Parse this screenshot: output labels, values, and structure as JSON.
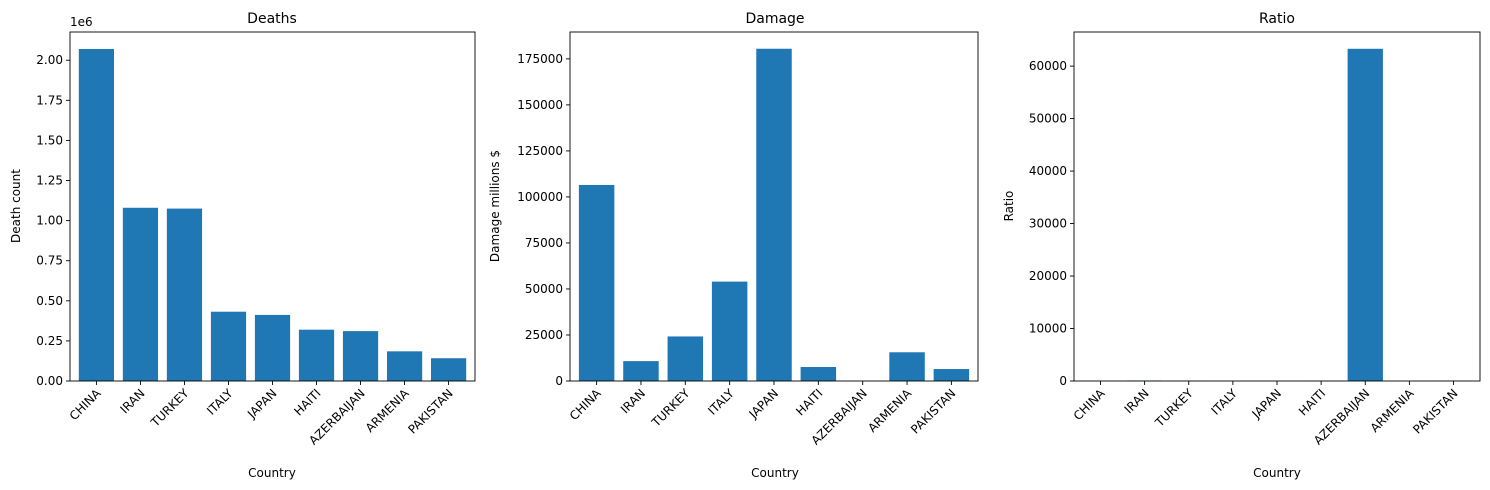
{
  "figure": {
    "background": "#ffffff",
    "bar_color": "#1f77b4"
  },
  "chart_data": [
    {
      "type": "bar",
      "title": "Deaths",
      "xlabel": "Country",
      "ylabel": "Death count",
      "offset_text": "1e6",
      "categories": [
        "CHINA",
        "IRAN",
        "TURKEY",
        "ITALY",
        "JAPAN",
        "HAITI",
        "AZERBAIJAN",
        "ARMENIA",
        "PAKISTAN"
      ],
      "values": [
        2070000,
        1080000,
        1075000,
        432000,
        412000,
        320000,
        311000,
        185000,
        142000
      ],
      "ylim": [
        0,
        2176000
      ],
      "yticks": [
        0,
        250000,
        500000,
        750000,
        1000000,
        1250000,
        1500000,
        1750000,
        2000000
      ],
      "ytick_labels": [
        "0.00",
        "0.25",
        "0.50",
        "0.75",
        "1.00",
        "1.25",
        "1.50",
        "1.75",
        "2.00"
      ]
    },
    {
      "type": "bar",
      "title": "Damage",
      "xlabel": "Country",
      "ylabel": "Damage millions $",
      "offset_text": "",
      "categories": [
        "CHINA",
        "IRAN",
        "TURKEY",
        "ITALY",
        "JAPAN",
        "HAITI",
        "AZERBAIJAN",
        "ARMENIA",
        "PAKISTAN"
      ],
      "values": [
        106500,
        10800,
        24200,
        54000,
        180500,
        7600,
        5,
        15600,
        6500
      ],
      "ylim": [
        0,
        189600
      ],
      "yticks": [
        0,
        25000,
        50000,
        75000,
        100000,
        125000,
        150000,
        175000
      ],
      "ytick_labels": [
        "0",
        "25000",
        "50000",
        "75000",
        "100000",
        "125000",
        "150000",
        "175000"
      ]
    },
    {
      "type": "bar",
      "title": "Ratio",
      "xlabel": "Country",
      "ylabel": "Ratio",
      "offset_text": "",
      "categories": [
        "CHINA",
        "IRAN",
        "TURKEY",
        "ITALY",
        "JAPAN",
        "HAITI",
        "AZERBAIJAN",
        "ARMENIA",
        "PAKISTAN"
      ],
      "values": [
        19,
        100,
        44,
        8,
        2,
        42,
        63300,
        12,
        22
      ],
      "ylim": [
        0,
        66500
      ],
      "yticks": [
        0,
        10000,
        20000,
        30000,
        40000,
        50000,
        60000
      ],
      "ytick_labels": [
        "0",
        "10000",
        "20000",
        "30000",
        "40000",
        "50000",
        "60000"
      ]
    }
  ]
}
